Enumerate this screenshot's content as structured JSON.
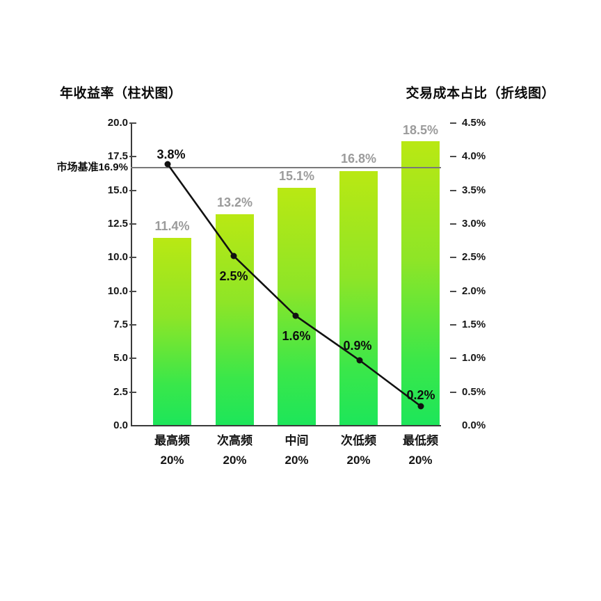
{
  "titles": {
    "left": "年收益率（柱状图）",
    "right": "交易成本占比（折线图）"
  },
  "chart_data": {
    "type": "combo-bar-line",
    "categories": [
      [
        "最高频",
        "20%"
      ],
      [
        "次高频",
        "20%"
      ],
      [
        "中间",
        "20%"
      ],
      [
        "次低频",
        "20%"
      ],
      [
        "最低频",
        "20%"
      ]
    ],
    "series": [
      {
        "name": "年收益率",
        "type": "bar",
        "axis": "left",
        "values": [
          11.4,
          13.2,
          15.1,
          16.8,
          18.5
        ],
        "labels": [
          "11.4%",
          "13.2%",
          "15.1%",
          "16.8%",
          "18.5%"
        ]
      },
      {
        "name": "交易成本占比",
        "type": "line",
        "axis": "right",
        "values": [
          3.8,
          2.5,
          1.6,
          0.9,
          0.2
        ],
        "labels": [
          "3.8%",
          "2.5%",
          "1.6%",
          "0.9%",
          "0.2%"
        ]
      }
    ],
    "left_axis": {
      "tick_labels": [
        "20.0",
        "17.5",
        "15.0",
        "12.5",
        "10.0",
        "10.0",
        "7.5",
        "5.0",
        "2.5",
        "0.0"
      ],
      "range": [
        0,
        20
      ]
    },
    "right_axis": {
      "tick_labels": [
        "4.5%",
        "4.0%",
        "3.5%",
        "3.0%",
        "2.5%",
        "2.0%",
        "1.5%",
        "1.0%",
        "0.5%",
        "0.0%"
      ],
      "range": [
        0,
        4.5
      ]
    },
    "benchmark": {
      "label": "市场基准16.9%",
      "value": 16.9
    },
    "grid": false,
    "legend_position": "none",
    "colors": {
      "bar_top": "#b9e813",
      "bar_bottom": "#1de65a",
      "line": "#111111",
      "benchmark_line": "#787878",
      "bar_label": "#9b9b9b",
      "line_label": "#0d0d0d"
    }
  }
}
